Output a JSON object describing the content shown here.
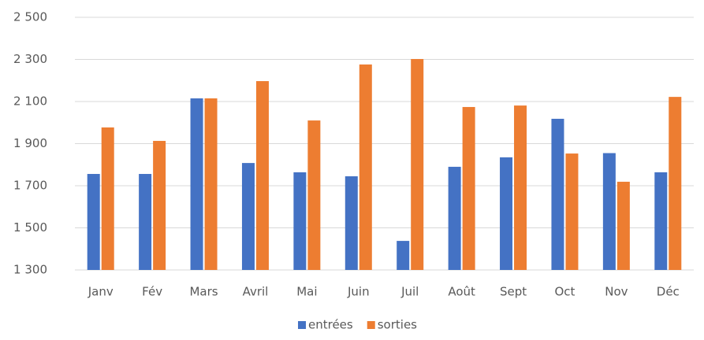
{
  "chart_data": {
    "type": "bar",
    "categories": [
      "Janv",
      "Fév",
      "Mars",
      "Avril",
      "Mai",
      "Juin",
      "Juil",
      "Août",
      "Sept",
      "Oct",
      "Nov",
      "Déc"
    ],
    "series": [
      {
        "name": "entrées",
        "color": "#4472c4",
        "values": [
          1756,
          1756,
          2115,
          1808,
          1764,
          1745,
          1438,
          1790,
          1835,
          2018,
          1855,
          1764
        ]
      },
      {
        "name": "sorties",
        "color": "#ed7d31",
        "values": [
          1977,
          1913,
          2115,
          2197,
          2010,
          2276,
          2302,
          2074,
          2081,
          1853,
          1719,
          2122
        ]
      }
    ],
    "ylim": [
      1300,
      2500
    ],
    "yticks": [
      {
        "value": 1300,
        "label": "1 300"
      },
      {
        "value": 1500,
        "label": "1 500"
      },
      {
        "value": 1700,
        "label": "1 700"
      },
      {
        "value": 1900,
        "label": "1 900"
      },
      {
        "value": 2100,
        "label": "2 100"
      },
      {
        "value": 2300,
        "label": "2 300"
      },
      {
        "value": 2500,
        "label": "2 500"
      }
    ],
    "grid": true,
    "legend": "bottom"
  }
}
